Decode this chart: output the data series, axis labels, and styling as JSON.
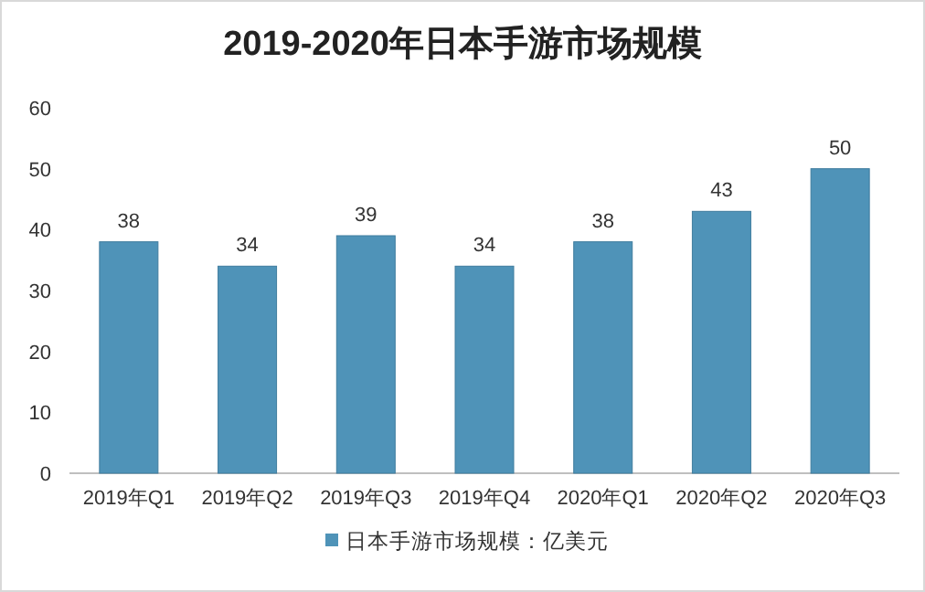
{
  "chart_data": {
    "type": "bar",
    "title": "2019-2020年日本手游市场规模",
    "categories": [
      "2019年Q1",
      "2019年Q2",
      "2019年Q3",
      "2019年Q4",
      "2020年Q1",
      "2020年Q2",
      "2020年Q3"
    ],
    "series": [
      {
        "name": "日本手游市场规模：亿美元",
        "color": "#4f93b8",
        "values": [
          38,
          34,
          39,
          34,
          38,
          43,
          50
        ]
      }
    ],
    "ylim": [
      0,
      60
    ],
    "yticks": [
      0,
      10,
      20,
      30,
      40,
      50,
      60
    ],
    "data_labels": true,
    "legend": "bottom"
  }
}
